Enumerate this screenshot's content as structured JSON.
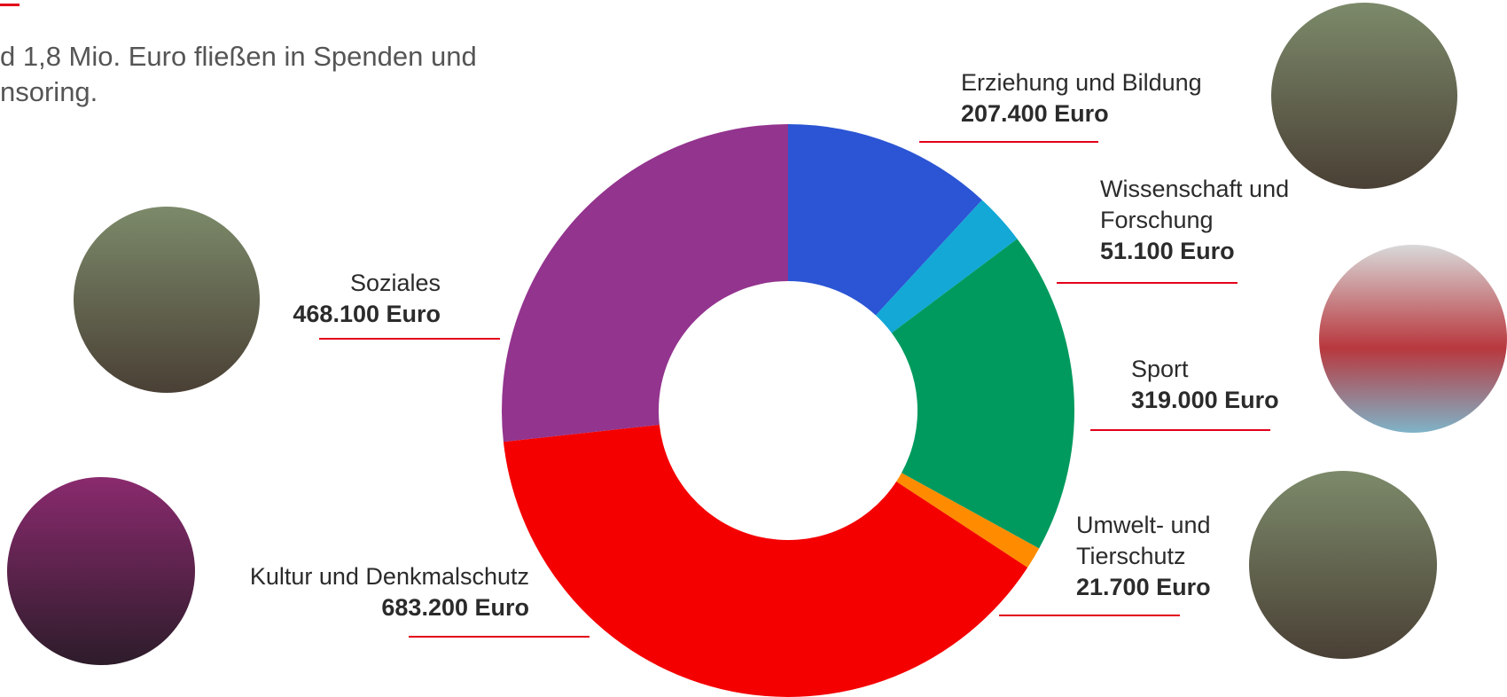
{
  "chart_data": {
    "type": "donut",
    "subtitle_lines": [
      "d 1,8 Mio. Euro fließen in Spenden und",
      "nsoring."
    ],
    "categories": [
      "Erziehung und Bildung",
      "Wissenschaft und Forschung",
      "Sport",
      "Umwelt- und Tierschutz",
      "Kultur und Denkmalschutz",
      "Soziales"
    ],
    "values": [
      207400,
      51100,
      319000,
      21700,
      683200,
      468100
    ],
    "value_labels": [
      "207.400 Euro",
      "51.100 Euro",
      "319.000 Euro",
      "21.700 Euro",
      "683.200 Euro",
      "468.100 Euro"
    ],
    "colors": [
      "#2b55d4",
      "#13a8d6",
      "#009a5e",
      "#ff8c00",
      "#f50000",
      "#93348e"
    ]
  }
}
